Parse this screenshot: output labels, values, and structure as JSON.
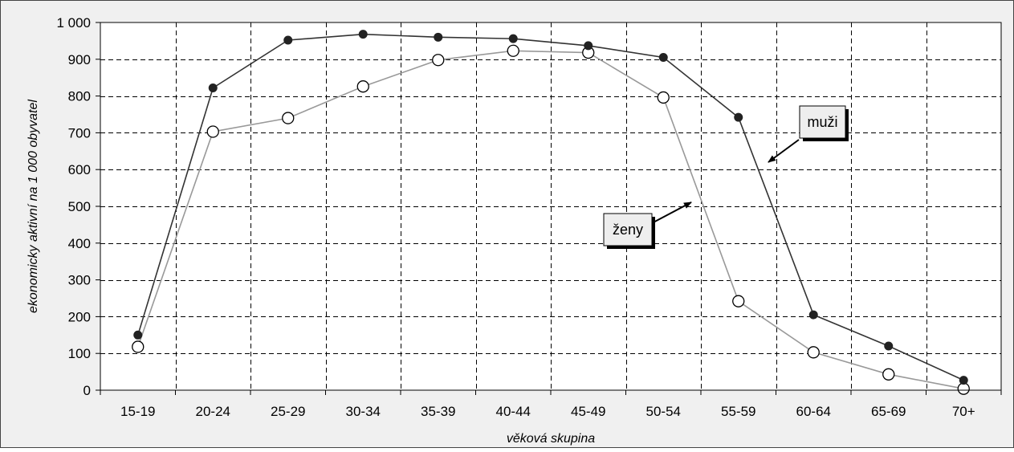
{
  "chart_data": {
    "type": "line",
    "categories": [
      "15-19",
      "20-24",
      "25-29",
      "30-34",
      "35-39",
      "40-44",
      "45-49",
      "50-54",
      "55-59",
      "60-64",
      "65-69",
      "70+"
    ],
    "series": [
      {
        "name": "muži",
        "values": [
          150,
          822,
          952,
          968,
          960,
          956,
          937,
          905,
          742,
          205,
          120,
          27
        ],
        "color": "#333333",
        "marker": "filled-circle"
      },
      {
        "name": "ženy",
        "values": [
          118,
          703,
          740,
          826,
          898,
          923,
          918,
          796,
          242,
          103,
          43,
          4
        ],
        "color": "#999999",
        "marker": "open-circle"
      }
    ],
    "xlabel": "věková skupina",
    "ylabel": "ekonomicky aktivní na 1 000 obyvatel",
    "ylim": [
      0,
      1000
    ],
    "yticks": [
      0,
      100,
      200,
      300,
      400,
      500,
      600,
      700,
      800,
      900,
      1000
    ],
    "ytick_labels": [
      "0",
      "100",
      "200",
      "300",
      "400",
      "500",
      "600",
      "700",
      "800",
      "900",
      "1 000"
    ],
    "grid": true,
    "grid_style": "dashed",
    "annotations": [
      {
        "text": "muži",
        "series": "muži"
      },
      {
        "text": "ženy",
        "series": "ženy"
      }
    ]
  }
}
